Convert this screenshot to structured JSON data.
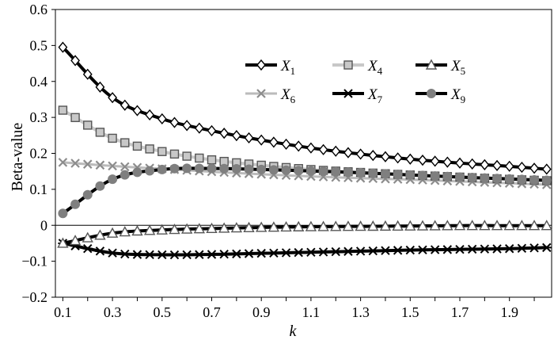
{
  "chart_data": {
    "type": "line",
    "title": "",
    "xlabel": "k",
    "ylabel": "Beta-value",
    "xlim": [
      0.07,
      2.07
    ],
    "ylim": [
      -0.2,
      0.6
    ],
    "x_ticks": [
      "0.1",
      "0.3",
      "0.5",
      "0.7",
      "0.9",
      "1.1",
      "1.3",
      "1.5",
      "1.7",
      "1.9"
    ],
    "y_ticks": [
      "0.6",
      "0.5",
      "0.4",
      "0.3",
      "0.2",
      "0.1",
      "0",
      "−0.1",
      "−0.2"
    ],
    "grid": false,
    "legend": "top-right",
    "x": [
      0.1,
      0.3,
      0.5,
      0.7,
      0.9,
      1.1,
      1.3,
      1.5,
      1.7,
      1.9,
      2.05
    ],
    "series": [
      {
        "name": "X1",
        "symbol": "X",
        "sub": "1",
        "marker": "diamond",
        "color": "#000000",
        "marker_fill": "#ffffff",
        "line_width": 4,
        "values": [
          0.495,
          0.355,
          0.296,
          0.263,
          0.237,
          0.215,
          0.198,
          0.184,
          0.173,
          0.164,
          0.156
        ]
      },
      {
        "name": "X4",
        "symbol": "X",
        "sub": "4",
        "marker": "square",
        "color": "#c8c8c8",
        "marker_fill": "#c8c8c8",
        "marker_stroke": "#555555",
        "line_width": 4,
        "values": [
          0.32,
          0.242,
          0.205,
          0.182,
          0.167,
          0.155,
          0.147,
          0.14,
          0.134,
          0.128,
          0.124
        ]
      },
      {
        "name": "X5",
        "symbol": "X",
        "sub": "5",
        "marker": "triangle",
        "color": "#000000",
        "marker_fill": "#ffffff",
        "marker_stroke": "#555555",
        "line_width": 4,
        "values": [
          -0.05,
          -0.022,
          -0.013,
          -0.009,
          -0.006,
          -0.004,
          -0.003,
          -0.002,
          -0.001,
          -0.001,
          -0.001
        ]
      },
      {
        "name": "X6",
        "symbol": "X",
        "sub": "6",
        "marker": "x",
        "color": "#bbbbbb",
        "marker_stroke": "#8c8c8c",
        "line_width": 3,
        "values": [
          0.175,
          0.165,
          0.157,
          0.149,
          0.142,
          0.136,
          0.131,
          0.127,
          0.122,
          0.117,
          0.113
        ]
      },
      {
        "name": "X7",
        "symbol": "X",
        "sub": "7",
        "marker": "star",
        "color": "#000000",
        "marker_stroke": "#000000",
        "line_width": 4,
        "values": [
          -0.05,
          -0.077,
          -0.082,
          -0.081,
          -0.078,
          -0.075,
          -0.072,
          -0.069,
          -0.067,
          -0.065,
          -0.062
        ]
      },
      {
        "name": "X9",
        "symbol": "X",
        "sub": "9",
        "marker": "circle",
        "color": "#000000",
        "marker_fill": "#7f7f7f",
        "line_width": 4,
        "values": [
          0.033,
          0.128,
          0.155,
          0.158,
          0.155,
          0.151,
          0.146,
          0.14,
          0.134,
          0.129,
          0.125
        ]
      }
    ]
  }
}
